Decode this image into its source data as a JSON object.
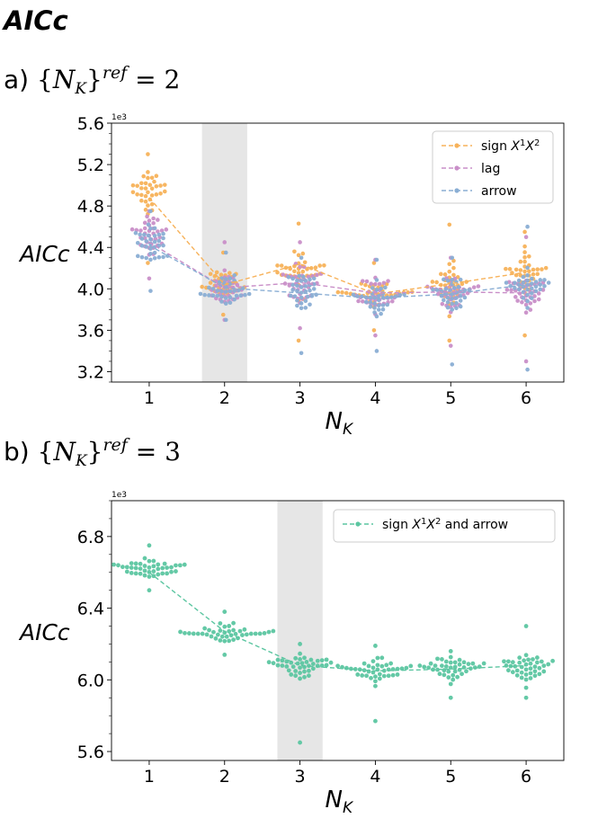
{
  "title": "AICc",
  "panels": [
    {
      "label_prefix": "a)",
      "label_open": "{",
      "label_var": "N",
      "label_sub": "K",
      "label_close": "}",
      "label_sup": "ref",
      "label_eq": "= 2"
    },
    {
      "label_prefix": "b)",
      "label_open": "{",
      "label_var": "N",
      "label_sub": "K",
      "label_close": "}",
      "label_sup": "ref",
      "label_eq": "= 3"
    }
  ],
  "chart_data": [
    {
      "type": "scatter",
      "subtype": "swarm",
      "ylabel": "AICc",
      "xlabel_var": "N",
      "xlabel_sub": "K",
      "scale_note": "1e3",
      "categories": [
        1,
        2,
        3,
        4,
        5,
        6
      ],
      "xlim": [
        0.5,
        6.5
      ],
      "ylim": [
        3.1,
        5.6
      ],
      "yticks": [
        3.2,
        3.6,
        4.0,
        4.4,
        4.8,
        5.2,
        5.6
      ],
      "ytick_labels": [
        "3.2",
        "3.6",
        "4.0",
        "4.4",
        "4.8",
        "5.2",
        "5.6"
      ],
      "shaded_category": 2,
      "legend_position": "upper-right",
      "series": [
        {
          "name": "sign X¹X²",
          "name_main": "sign ",
          "name_math": "X",
          "name_sup1": "1",
          "name_math2": "X",
          "name_sup2": "2",
          "color": "#f7b25a",
          "means": [
            4.88,
            4.04,
            4.24,
            3.95,
            4.05,
            4.16
          ],
          "centers": [
            4.95,
            4.05,
            4.2,
            3.95,
            4.05,
            4.15
          ],
          "spreads": [
            0.18,
            0.12,
            0.22,
            0.12,
            0.18,
            0.2
          ],
          "mins": [
            4.25,
            3.75,
            3.5,
            3.6,
            3.5,
            3.55
          ],
          "maxs": [
            5.3,
            4.35,
            4.63,
            4.25,
            4.62,
            4.55
          ]
        },
        {
          "name": "lag",
          "name_main": "lag",
          "color": "#c98fc8",
          "means": [
            4.45,
            4.01,
            4.06,
            3.96,
            3.97,
            3.96
          ],
          "centers": [
            4.5,
            4.0,
            4.05,
            3.95,
            3.97,
            3.97
          ],
          "spreads": [
            0.17,
            0.14,
            0.18,
            0.17,
            0.19,
            0.19
          ],
          "mins": [
            4.1,
            3.7,
            3.62,
            3.55,
            3.45,
            3.3
          ],
          "maxs": [
            4.75,
            4.45,
            4.45,
            4.28,
            4.3,
            4.5
          ]
        },
        {
          "name": "arrow",
          "name_main": "arrow",
          "color": "#8aaed4",
          "means": [
            4.42,
            4.01,
            3.96,
            3.91,
            3.95,
            4.04
          ],
          "centers": [
            4.42,
            4.0,
            3.95,
            3.9,
            3.95,
            4.0
          ],
          "spreads": [
            0.18,
            0.14,
            0.2,
            0.18,
            0.2,
            0.2
          ],
          "mins": [
            3.98,
            3.7,
            3.38,
            3.4,
            3.27,
            3.22
          ],
          "maxs": [
            4.75,
            4.35,
            4.3,
            4.28,
            4.3,
            4.6
          ]
        }
      ]
    },
    {
      "type": "scatter",
      "subtype": "swarm",
      "ylabel": "AICc",
      "xlabel_var": "N",
      "xlabel_sub": "K",
      "scale_note": "1e3",
      "categories": [
        1,
        2,
        3,
        4,
        5,
        6
      ],
      "xlim": [
        0.5,
        6.5
      ],
      "ylim": [
        5.55,
        7.0
      ],
      "yticks": [
        5.6,
        6.0,
        6.4,
        6.8
      ],
      "ytick_labels": [
        "5.6",
        "6.0",
        "6.4",
        "6.8"
      ],
      "shaded_category": 3,
      "legend_position": "upper-right",
      "series": [
        {
          "name": "sign X¹X² and arrow",
          "name_main": "sign ",
          "name_math": "X",
          "name_sup1": "1",
          "name_math2": "X",
          "name_sup2": "2",
          "name_tail": " and arrow",
          "color": "#5cc6a1",
          "means": [
            6.6,
            6.27,
            6.08,
            6.05,
            6.06,
            6.08
          ],
          "centers": [
            6.62,
            6.27,
            6.08,
            6.05,
            6.06,
            6.08
          ],
          "spreads": [
            0.05,
            0.05,
            0.06,
            0.07,
            0.07,
            0.07
          ],
          "mins": [
            6.5,
            6.14,
            5.65,
            5.77,
            5.9,
            5.9
          ],
          "maxs": [
            6.75,
            6.38,
            6.2,
            6.19,
            6.16,
            6.3
          ]
        }
      ]
    }
  ]
}
